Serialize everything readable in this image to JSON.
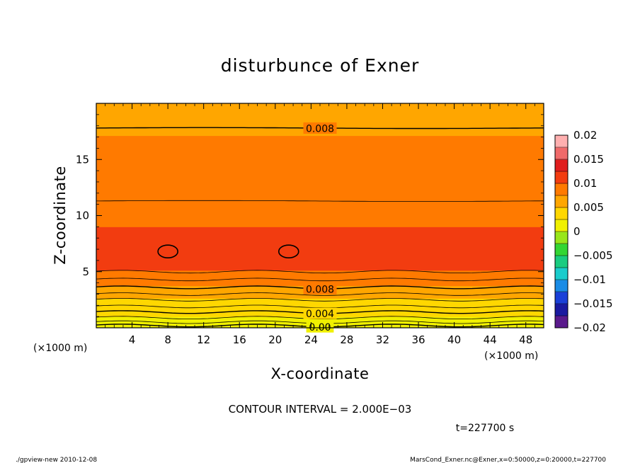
{
  "chart_data": {
    "type": "heatmap",
    "title": "disturbunce of Exner",
    "xlabel": "X-coordinate",
    "ylabel": "Z-coordinate",
    "x_unit_left": "(×1000 m)",
    "x_unit_right": "(×1000 m)",
    "xlim": [
      0,
      50
    ],
    "ylim": [
      0,
      20
    ],
    "x_ticks": [
      4,
      8,
      12,
      16,
      20,
      24,
      28,
      32,
      36,
      40,
      44,
      48
    ],
    "x_tick_labels": [
      "4",
      "8",
      "12",
      "16",
      "20",
      "24",
      "28",
      "32",
      "36",
      "40",
      "44",
      "48"
    ],
    "y_ticks": [
      5,
      10,
      15
    ],
    "y_tick_labels": [
      "5",
      "10",
      "15"
    ],
    "colorbar": {
      "levels": [
        -0.02,
        -0.015,
        -0.01,
        -0.005,
        0,
        0.005,
        0.01,
        0.015,
        0.02
      ],
      "labels": [
        "0.02",
        "0.015",
        "0.01",
        "0.005",
        "0",
        "−0.005",
        "−0.01",
        "−0.015",
        "−0.02"
      ],
      "colors": [
        "#5a1a8c",
        "#1a1aa0",
        "#1a40d8",
        "#1a8ce6",
        "#1acccc",
        "#1acc80",
        "#33d633",
        "#99e61a",
        "#f0f000",
        "#ffd700",
        "#ffa600",
        "#ff7a00",
        "#f23c10",
        "#e01e1e",
        "#f06a6a",
        "#ffb0b0"
      ]
    },
    "vertical_profile": [
      {
        "z": 0.0,
        "value": 0.0
      },
      {
        "z": 0.3,
        "value": 0.0008
      },
      {
        "z": 0.8,
        "value": 0.002
      },
      {
        "z": 1.3,
        "value": 0.003
      },
      {
        "z": 2.0,
        "value": 0.004
      },
      {
        "z": 2.6,
        "value": 0.005
      },
      {
        "z": 3.2,
        "value": 0.006
      },
      {
        "z": 3.7,
        "value": 0.0075
      },
      {
        "z": 4.0,
        "value": 0.008
      },
      {
        "z": 4.6,
        "value": 0.0092
      },
      {
        "z": 5.2,
        "value": 0.0102
      },
      {
        "z": 6.0,
        "value": 0.0107
      },
      {
        "z": 7.0,
        "value": 0.011
      },
      {
        "z": 8.0,
        "value": 0.0107
      },
      {
        "z": 8.6,
        "value": 0.0102
      },
      {
        "z": 10.0,
        "value": 0.0095
      },
      {
        "z": 11.3,
        "value": 0.009
      },
      {
        "z": 13.0,
        "value": 0.0086
      },
      {
        "z": 14.5,
        "value": 0.0082
      },
      {
        "z": 16.5,
        "value": 0.0078
      },
      {
        "z": 17.8,
        "value": 0.0072
      },
      {
        "z": 20.0,
        "value": 0.0065
      }
    ],
    "contour_lines": [
      {
        "z": 17.8,
        "level": 0.008,
        "label": "0.008"
      },
      {
        "z": 11.3,
        "level": 0.01,
        "label": ""
      },
      {
        "z": 5.0,
        "level": 0.01,
        "label": ""
      },
      {
        "z": 4.3,
        "level": 0.009,
        "label": ""
      },
      {
        "z": 3.6,
        "level": 0.008,
        "label": "0.008"
      },
      {
        "z": 3.0,
        "level": 0.007,
        "label": ""
      },
      {
        "z": 2.5,
        "level": 0.006,
        "label": ""
      },
      {
        "z": 1.9,
        "level": 0.005,
        "label": ""
      },
      {
        "z": 1.4,
        "level": 0.004,
        "label": "0.004"
      },
      {
        "z": 0.9,
        "level": 0.003,
        "label": ""
      },
      {
        "z": 0.5,
        "level": 0.002,
        "label": ""
      },
      {
        "z": 0.2,
        "level": 0.001,
        "label": "0.00"
      }
    ],
    "closed_contours": [
      {
        "x": 8.0,
        "z": 6.8,
        "level": 0.011
      },
      {
        "x": 21.5,
        "z": 6.8,
        "level": 0.011
      }
    ],
    "contour_interval_text": "CONTOUR INTERVAL = 2.000E−03",
    "time_text": "t=227700 s"
  },
  "footer": {
    "left": "./gpview-new   2010-12-08",
    "right": "MarsCond_Exner.nc@Exner,x=0:50000,z=0:20000,t=227700"
  }
}
